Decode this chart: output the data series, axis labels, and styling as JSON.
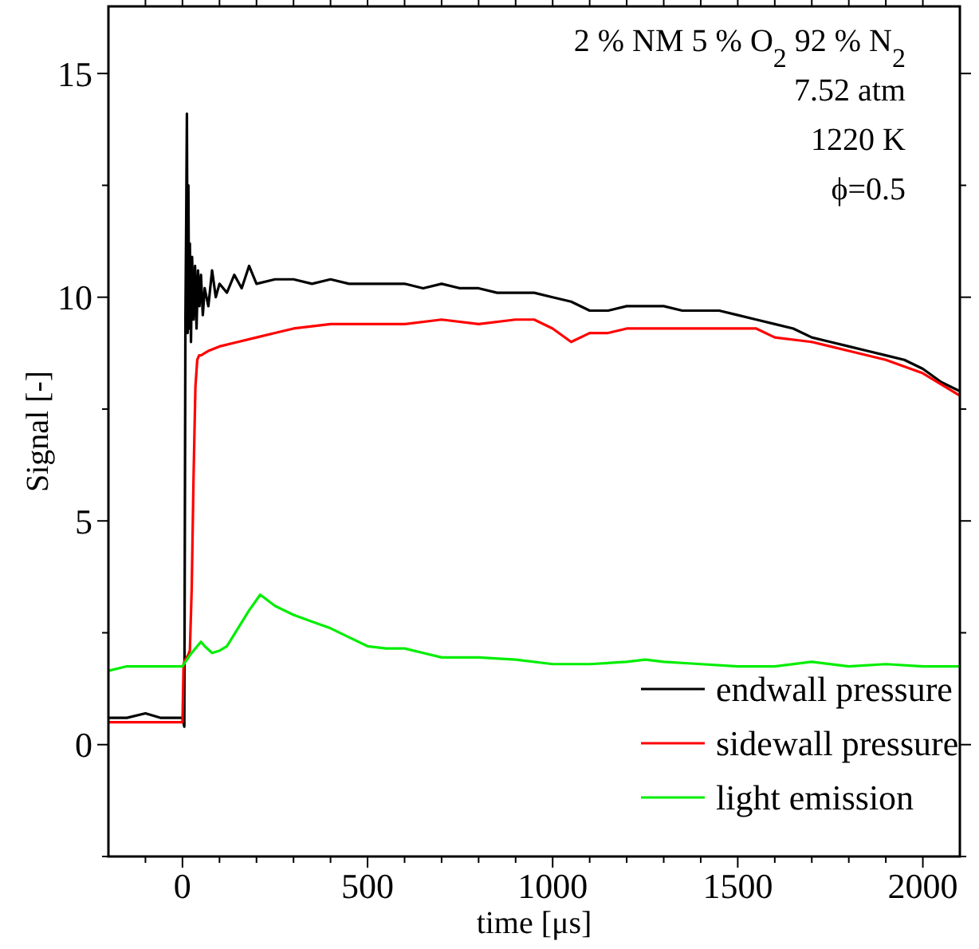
{
  "chart_data": {
    "type": "line",
    "xlabel": "time [μs]",
    "ylabel": "Signal [-]",
    "xlim": [
      -200,
      2100
    ],
    "ylim": [
      -2.5,
      16.5
    ],
    "xticks": [
      {
        "value": -100,
        "label": null
      },
      0,
      {
        "value": 100,
        "label": null
      },
      {
        "value": 200,
        "label": null
      },
      {
        "value": 300,
        "label": null
      },
      {
        "value": 400,
        "label": null
      },
      500,
      {
        "value": 600,
        "label": null
      },
      {
        "value": 700,
        "label": null
      },
      {
        "value": 800,
        "label": null
      },
      {
        "value": 900,
        "label": null
      },
      1000,
      {
        "value": 1100,
        "label": null
      },
      {
        "value": 1200,
        "label": null
      },
      {
        "value": 1300,
        "label": null
      },
      {
        "value": 1400,
        "label": null
      },
      1500,
      {
        "value": 1600,
        "label": null
      },
      {
        "value": 1700,
        "label": null
      },
      {
        "value": 1800,
        "label": null
      },
      {
        "value": 1900,
        "label": null
      },
      2000
    ],
    "yticks": [
      {
        "value": -2.5,
        "label": null
      },
      0,
      {
        "value": 2.5,
        "label": null
      },
      5,
      {
        "value": 7.5,
        "label": null
      },
      10,
      {
        "value": 12.5,
        "label": null
      },
      15
    ],
    "legend": "bottom right",
    "grid": false,
    "annotations": [
      "2 % NM  5 % O$_{2}$ 92 % N$_{2}$",
      "7.52 atm",
      "1220 K",
      "ϕ=0.5"
    ],
    "series": [
      {
        "name": "endwall pressure",
        "color": "#000000",
        "x": [
          -200,
          -150,
          -100,
          -60,
          -20,
          0,
          5,
          8,
          10,
          12,
          14,
          16,
          18,
          20,
          23,
          26,
          30,
          34,
          38,
          42,
          46,
          50,
          55,
          60,
          70,
          80,
          90,
          100,
          120,
          140,
          160,
          180,
          200,
          250,
          300,
          350,
          400,
          450,
          500,
          550,
          600,
          650,
          700,
          750,
          800,
          850,
          900,
          950,
          1000,
          1050,
          1100,
          1150,
          1200,
          1250,
          1300,
          1350,
          1400,
          1450,
          1500,
          1550,
          1600,
          1650,
          1700,
          1750,
          1800,
          1850,
          1900,
          1950,
          2000,
          2050,
          2100
        ],
        "values": [
          0.6,
          0.6,
          0.7,
          0.6,
          0.6,
          0.6,
          0.4,
          9.5,
          11.6,
          14.1,
          9.2,
          12.5,
          9.3,
          11.2,
          9.0,
          10.9,
          9.5,
          10.7,
          9.3,
          10.6,
          9.8,
          10.5,
          9.6,
          10.2,
          9.8,
          10.6,
          10.0,
          10.3,
          10.1,
          10.5,
          10.2,
          10.7,
          10.3,
          10.4,
          10.4,
          10.3,
          10.4,
          10.3,
          10.3,
          10.3,
          10.3,
          10.2,
          10.3,
          10.2,
          10.2,
          10.1,
          10.1,
          10.1,
          10.0,
          9.9,
          9.7,
          9.7,
          9.8,
          9.8,
          9.8,
          9.7,
          9.7,
          9.7,
          9.6,
          9.5,
          9.4,
          9.3,
          9.1,
          9.0,
          8.9,
          8.8,
          8.7,
          8.6,
          8.4,
          8.1,
          7.9
        ]
      },
      {
        "name": "sidewall pressure",
        "color": "#ff0000",
        "x": [
          -200,
          -150,
          -100,
          -50,
          -10,
          0,
          3,
          8,
          15,
          20,
          25,
          30,
          35,
          40,
          45,
          50,
          70,
          100,
          150,
          200,
          250,
          300,
          400,
          500,
          600,
          700,
          800,
          900,
          950,
          1000,
          1050,
          1100,
          1150,
          1200,
          1300,
          1400,
          1500,
          1550,
          1600,
          1700,
          1750,
          1800,
          1900,
          2000,
          2100
        ],
        "values": [
          0.5,
          0.5,
          0.5,
          0.5,
          0.5,
          0.5,
          1.8,
          1.9,
          2.0,
          2.1,
          3.5,
          6.0,
          8.0,
          8.6,
          8.7,
          8.7,
          8.8,
          8.9,
          9.0,
          9.1,
          9.2,
          9.3,
          9.4,
          9.4,
          9.4,
          9.5,
          9.4,
          9.5,
          9.5,
          9.3,
          9.0,
          9.2,
          9.2,
          9.3,
          9.3,
          9.3,
          9.3,
          9.3,
          9.1,
          9.0,
          8.9,
          8.8,
          8.6,
          8.3,
          7.8
        ]
      },
      {
        "name": "light emission",
        "color": "#00ee00",
        "x": [
          -200,
          -150,
          -100,
          -50,
          0,
          20,
          40,
          50,
          60,
          80,
          100,
          120,
          150,
          180,
          210,
          250,
          300,
          350,
          400,
          450,
          500,
          550,
          600,
          650,
          700,
          800,
          900,
          1000,
          1100,
          1200,
          1250,
          1300,
          1400,
          1500,
          1600,
          1700,
          1800,
          1900,
          2000,
          2100
        ],
        "values": [
          1.65,
          1.75,
          1.75,
          1.75,
          1.75,
          2.0,
          2.2,
          2.3,
          2.2,
          2.05,
          2.1,
          2.2,
          2.6,
          3.0,
          3.35,
          3.1,
          2.9,
          2.75,
          2.6,
          2.4,
          2.2,
          2.15,
          2.15,
          2.05,
          1.95,
          1.95,
          1.9,
          1.8,
          1.8,
          1.85,
          1.9,
          1.85,
          1.8,
          1.75,
          1.75,
          1.85,
          1.75,
          1.8,
          1.75,
          1.75
        ]
      }
    ]
  }
}
